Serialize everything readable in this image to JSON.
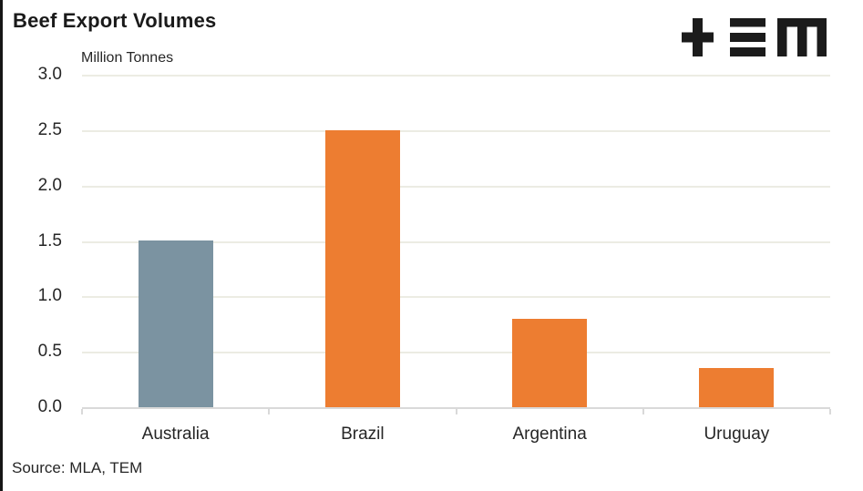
{
  "title": "Beef Export Volumes",
  "source": "Source: MLA, TEM",
  "logo": {
    "name": "TEM logo",
    "color": "#1b1b1b"
  },
  "chart_data": {
    "type": "bar",
    "title": "Beef Export Volumes",
    "ylabel": "Million Tonnes",
    "xlabel": "",
    "categories": [
      "Australia",
      "Brazil",
      "Argentina",
      "Uruguay"
    ],
    "values": [
      1.5,
      2.5,
      0.8,
      0.35
    ],
    "bar_colors": [
      "#7B93A1",
      "#ED7D31",
      "#ED7D31",
      "#ED7D31"
    ],
    "ylim": [
      0,
      3
    ],
    "ytick_step": 0.5,
    "yticks": [
      "3.0",
      "2.5",
      "2.0",
      "1.5",
      "1.0",
      "0.5",
      "0.0"
    ],
    "grid": true,
    "legend": "none",
    "gridline_color": "#ECECE3",
    "axis_color": "#D9D9D9",
    "text_color": "#262626",
    "annotation": "Source: MLA, TEM"
  }
}
